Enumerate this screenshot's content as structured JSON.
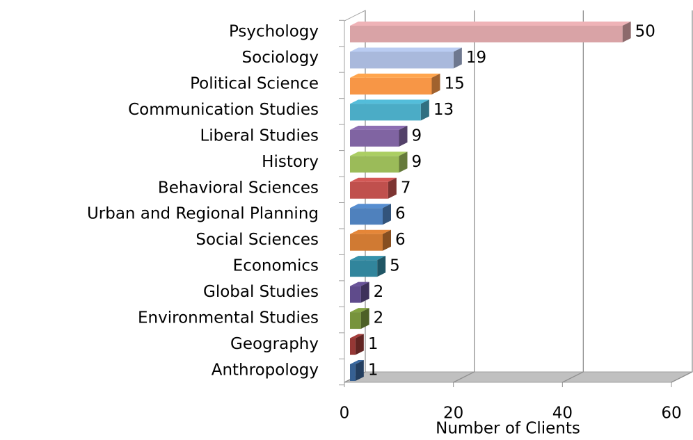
{
  "chart_data": {
    "type": "bar3d_horizontal",
    "categories": [
      "Psychology",
      "Sociology",
      "Political Science",
      "Communication Studies",
      "Liberal Studies",
      "History",
      "Behavioral Sciences",
      "Urban and Regional Planning",
      "Social Sciences",
      "Economics",
      "Global Studies",
      "Environmental Studies",
      "Geography",
      "Anthropology"
    ],
    "values": [
      50,
      19,
      15,
      13,
      9,
      9,
      7,
      6,
      6,
      5,
      2,
      2,
      1,
      1
    ],
    "colors": [
      "#d9a3a6",
      "#a9b9dc",
      "#f79646",
      "#4bacc6",
      "#8064a2",
      "#9bbb59",
      "#c0504d",
      "#4f81bd",
      "#d07a33",
      "#31859c",
      "#5f4b8b",
      "#77933c",
      "#953735",
      "#366092"
    ],
    "x_label": "Number of Clients",
    "xlim": [
      0,
      60
    ],
    "xticks": [
      0,
      20,
      40,
      60
    ],
    "grid": true
  }
}
